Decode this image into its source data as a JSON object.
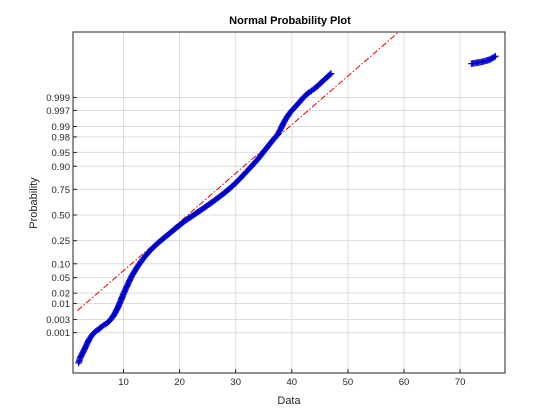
{
  "chart_data": {
    "type": "scatter",
    "title": "Normal Probability Plot",
    "xlabel": "Data",
    "ylabel": "Probability",
    "xlim": [
      1,
      78
    ],
    "x_ticks": [
      10,
      20,
      30,
      40,
      50,
      60,
      70
    ],
    "y_ticks": [
      0.001,
      0.003,
      0.01,
      0.02,
      0.05,
      0.1,
      0.25,
      0.5,
      0.75,
      0.9,
      0.95,
      0.98,
      0.99,
      0.997,
      0.999
    ],
    "y_tick_labels": [
      "0.001",
      "0.003",
      "0.01",
      "0.02",
      "0.05",
      "0.10",
      "0.25",
      "0.50",
      "0.75",
      "0.90",
      "0.95",
      "0.98",
      "0.99",
      "0.997",
      "0.999"
    ],
    "grid": true,
    "marker": "+",
    "marker_color": "#0000cc",
    "reference_line": {
      "color": "#e00000",
      "style": "dash-dot",
      "points": [
        [
          1.8,
          0.006
        ],
        [
          37.5,
          0.98
        ]
      ]
    },
    "series": [
      {
        "points": [
          [
            2.0,
            5e-05
          ],
          [
            2.3,
            9e-05
          ],
          [
            2.8,
            0.00016
          ],
          [
            3.2,
            0.00025
          ],
          [
            3.6,
            0.0004
          ],
          [
            4.0,
            0.0006
          ],
          [
            4.5,
            0.00085
          ],
          [
            5.0,
            0.0011
          ],
          [
            5.5,
            0.0013
          ],
          [
            6.0,
            0.0016
          ],
          [
            6.5,
            0.0019
          ],
          [
            7.0,
            0.0022
          ],
          [
            7.5,
            0.0027
          ],
          [
            8.0,
            0.0035
          ],
          [
            8.5,
            0.005
          ],
          [
            9.0,
            0.0075
          ],
          [
            9.5,
            0.012
          ],
          [
            10.0,
            0.019
          ],
          [
            10.5,
            0.028
          ],
          [
            11.0,
            0.04
          ],
          [
            11.5,
            0.055
          ],
          [
            12.0,
            0.07
          ],
          [
            12.5,
            0.088
          ],
          [
            13.0,
            0.105
          ],
          [
            13.5,
            0.125
          ],
          [
            14.0,
            0.145
          ],
          [
            14.5,
            0.165
          ],
          [
            15.0,
            0.185
          ],
          [
            15.5,
            0.205
          ],
          [
            16.0,
            0.225
          ],
          [
            17.0,
            0.265
          ],
          [
            18.0,
            0.305
          ],
          [
            19.0,
            0.35
          ],
          [
            20.0,
            0.395
          ],
          [
            21.0,
            0.44
          ],
          [
            22.0,
            0.48
          ],
          [
            23.0,
            0.52
          ],
          [
            24.0,
            0.56
          ],
          [
            25.0,
            0.6
          ],
          [
            26.0,
            0.64
          ],
          [
            27.0,
            0.68
          ],
          [
            28.0,
            0.72
          ],
          [
            29.0,
            0.76
          ],
          [
            30.0,
            0.8
          ],
          [
            31.0,
            0.84
          ],
          [
            32.0,
            0.875
          ],
          [
            33.0,
            0.905
          ],
          [
            34.0,
            0.93
          ],
          [
            35.0,
            0.952
          ],
          [
            36.0,
            0.968
          ],
          [
            37.0,
            0.979
          ],
          [
            37.5,
            0.983
          ],
          [
            38.0,
            0.988
          ],
          [
            38.5,
            0.992
          ],
          [
            39.0,
            0.9945
          ],
          [
            39.5,
            0.996
          ],
          [
            40.0,
            0.997
          ],
          [
            40.5,
            0.9976
          ],
          [
            41.0,
            0.9982
          ],
          [
            41.5,
            0.9986
          ],
          [
            42.0,
            0.99895
          ],
          [
            42.5,
            0.99918
          ],
          [
            43.0,
            0.99935
          ],
          [
            43.5,
            0.99945
          ],
          [
            44.0,
            0.99955
          ],
          [
            44.5,
            0.99963
          ],
          [
            45.0,
            0.99972
          ],
          [
            45.5,
            0.99978
          ],
          [
            46.0,
            0.99983
          ],
          [
            46.5,
            0.99987
          ],
          [
            47.0,
            0.9999
          ],
          [
            72.0,
            0.999965
          ],
          [
            74.0,
            0.999972
          ],
          [
            75.3,
            0.999978
          ],
          [
            76.3,
            0.999985
          ]
        ]
      }
    ]
  }
}
